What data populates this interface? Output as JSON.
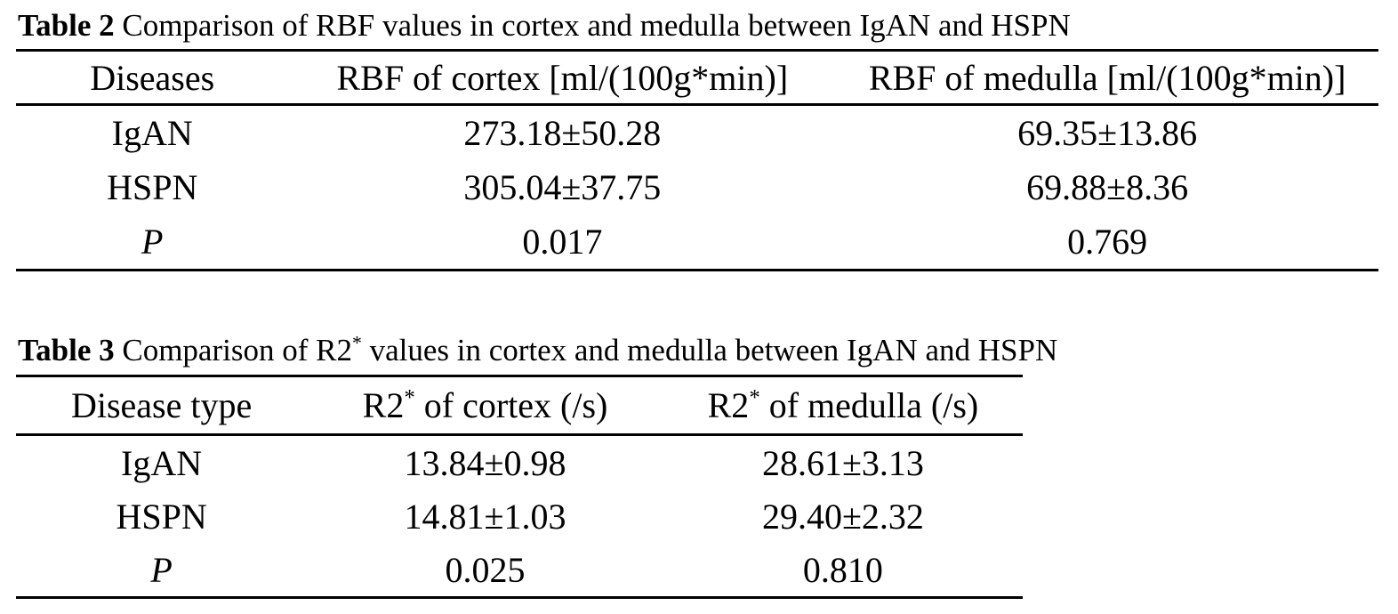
{
  "page": {
    "background_color": "#ffffff",
    "text_color": "#000000"
  },
  "table2": {
    "title_label": "Table 2",
    "title_rest": " Comparison of RBF values in cortex and medulla between IgAN and HSPN",
    "columns": [
      "Diseases",
      "RBF of cortex [ml/(100g*min)]",
      "RBF of medulla [ml/(100g*min)]"
    ],
    "rows": [
      {
        "disease": "IgAN",
        "cortex": "273.18±50.28",
        "medulla": "69.35±13.86"
      },
      {
        "disease": "HSPN",
        "cortex": "305.04±37.75",
        "medulla": "69.88±8.36"
      },
      {
        "disease": "P",
        "cortex": "0.017",
        "medulla": "0.769"
      }
    ]
  },
  "table3": {
    "title_label": "Table 3",
    "title_pre": " Comparison of R2",
    "title_sup": "*",
    "title_post": " values in cortex and medulla between IgAN and HSPN",
    "columns": [
      {
        "pre": "Disease type",
        "sup": "",
        "post": ""
      },
      {
        "pre": "R2",
        "sup": "*",
        "post": " of cortex (/s)"
      },
      {
        "pre": "R2",
        "sup": "*",
        "post": " of medulla (/s)"
      }
    ],
    "rows": [
      {
        "disease": "IgAN",
        "cortex": "13.84±0.98",
        "medulla": "28.61±3.13"
      },
      {
        "disease": "HSPN",
        "cortex": "14.81±1.03",
        "medulla": "29.40±2.32"
      },
      {
        "disease": "P",
        "cortex": "0.025",
        "medulla": "0.810"
      }
    ]
  }
}
